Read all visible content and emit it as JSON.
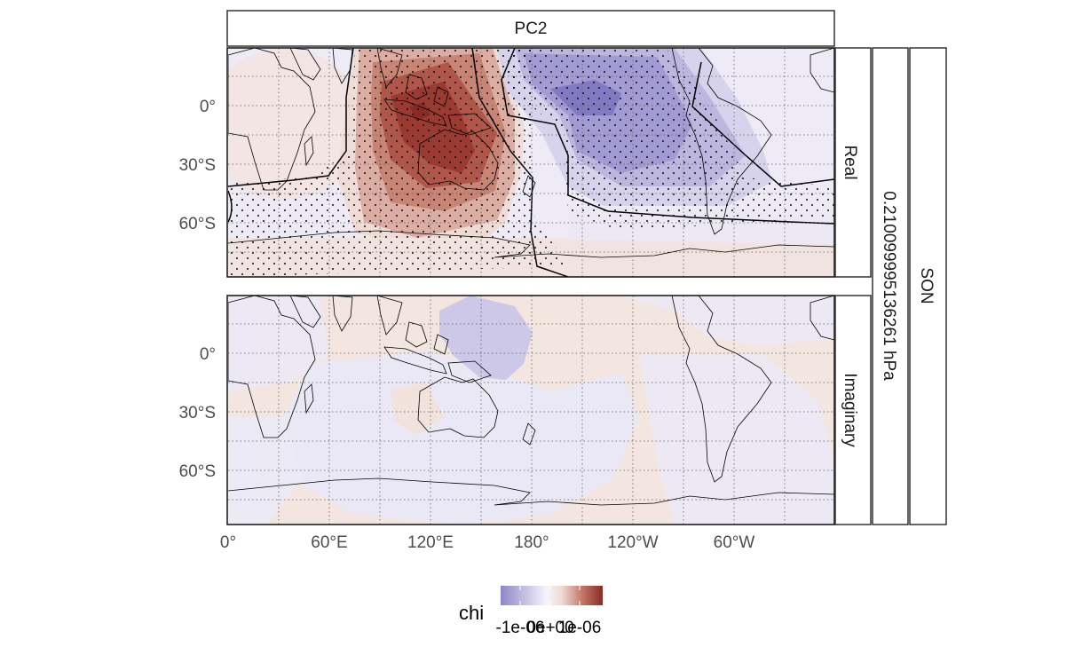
{
  "facet_top_label": "PC2",
  "facet_row_labels": [
    "Real",
    "Imaginary"
  ],
  "facet_level_label": "0.210099995136261 hPa",
  "facet_season_label": "SON",
  "x_tick_labels": [
    "0°",
    "60°E",
    "120°E",
    "180°",
    "120°W",
    "60°W"
  ],
  "y_tick_labels": [
    "0°",
    "30°S",
    "60°S"
  ],
  "legend": {
    "title": "chi",
    "tick_labels": [
      "-1e-06",
      "0e+00",
      "1e-06"
    ],
    "colors": [
      "#8d87c8",
      "#c9c5e4",
      "#f4f1f8",
      "#f3e4df",
      "#d9a49a",
      "#ad5548",
      "#8b2a22"
    ]
  },
  "colors": {
    "positive_strong": "#8b2a22",
    "positive_weak": "#f3e6e1",
    "negative_strong": "#7d74bd",
    "negative_weak": "#ebe8f5"
  }
}
